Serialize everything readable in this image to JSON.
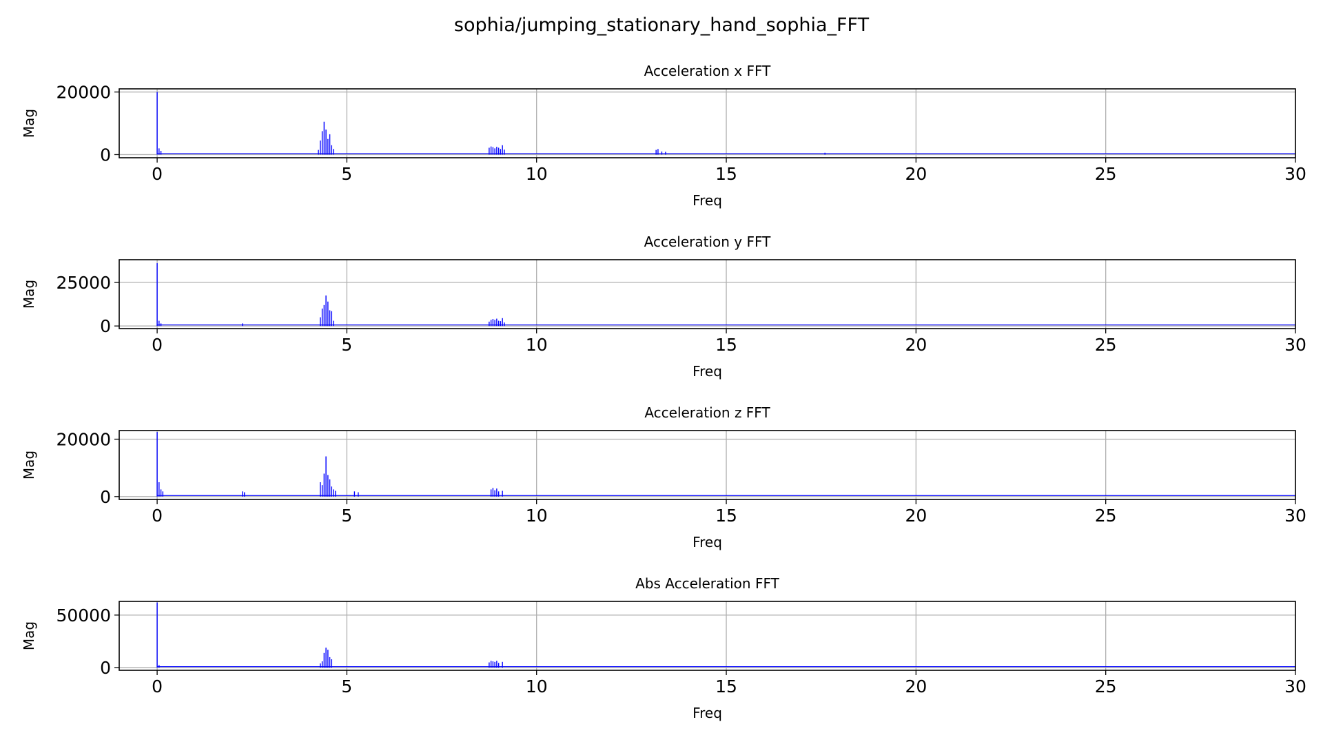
{
  "figure_title": "sophia/jumping_stationary_hand_sophia_FFT",
  "style": {
    "line_color": "#0000ff",
    "grid_color": "#b0b0b0",
    "axis_color": "#000000"
  },
  "chart_data": [
    {
      "type": "bar",
      "title": "Acceleration x FFT",
      "xlabel": "Freq",
      "ylabel": "Mag",
      "xlim": [
        -1,
        30
      ],
      "ylim": [
        -1000,
        21000
      ],
      "xticks": [
        0,
        5,
        10,
        15,
        20,
        25,
        30
      ],
      "yticks": [
        0,
        20000
      ],
      "grid": true,
      "x": [
        0.0,
        0.05,
        0.1,
        4.25,
        4.3,
        4.35,
        4.4,
        4.45,
        4.5,
        4.55,
        4.6,
        4.65,
        8.75,
        8.8,
        8.85,
        8.9,
        8.95,
        9.0,
        9.05,
        9.1,
        9.15,
        13.15,
        13.2,
        13.3,
        13.4,
        17.6
      ],
      "values": [
        20000,
        2000,
        1200,
        1500,
        4500,
        7500,
        10500,
        8000,
        5000,
        6500,
        3000,
        1800,
        2200,
        2600,
        2400,
        2000,
        2500,
        2200,
        1800,
        3000,
        1600,
        1500,
        1800,
        1000,
        900,
        600
      ]
    },
    {
      "type": "bar",
      "title": "Acceleration y FFT",
      "xlabel": "Freq",
      "ylabel": "Mag",
      "xlim": [
        -1,
        30
      ],
      "ylim": [
        -1500,
        38000
      ],
      "xticks": [
        0,
        5,
        10,
        15,
        20,
        25,
        30
      ],
      "yticks": [
        0,
        25000
      ],
      "grid": true,
      "x": [
        0.0,
        0.05,
        0.1,
        2.25,
        4.3,
        4.35,
        4.4,
        4.45,
        4.5,
        4.55,
        4.6,
        4.65,
        8.75,
        8.8,
        8.85,
        8.9,
        8.95,
        9.0,
        9.05,
        9.1,
        9.15
      ],
      "values": [
        36000,
        3000,
        1500,
        1500,
        5000,
        10000,
        12000,
        17500,
        14000,
        9000,
        8500,
        3000,
        2500,
        3500,
        4000,
        3500,
        4200,
        3000,
        2800,
        4500,
        2000
      ]
    },
    {
      "type": "bar",
      "title": "Acceleration z FFT",
      "xlabel": "Freq",
      "ylabel": "Mag",
      "xlim": [
        -1,
        30
      ],
      "ylim": [
        -1000,
        23000
      ],
      "xticks": [
        0,
        5,
        10,
        15,
        20,
        25,
        30
      ],
      "yticks": [
        0,
        20000
      ],
      "grid": true,
      "x": [
        0.0,
        0.05,
        0.1,
        0.15,
        2.25,
        2.3,
        4.3,
        4.35,
        4.4,
        4.45,
        4.5,
        4.55,
        4.6,
        4.65,
        4.7,
        5.2,
        5.3,
        8.8,
        8.85,
        8.9,
        8.95,
        9.0,
        9.1
      ],
      "values": [
        22500,
        5000,
        2500,
        1800,
        1800,
        1500,
        5000,
        4000,
        8000,
        14000,
        7500,
        6000,
        3500,
        2500,
        2000,
        1800,
        1500,
        2500,
        3000,
        2200,
        2800,
        1800,
        2000
      ]
    },
    {
      "type": "bar",
      "title": "Abs Acceleration FFT",
      "xlabel": "Freq",
      "ylabel": "Mag",
      "xlim": [
        -1,
        30
      ],
      "ylim": [
        -2500,
        63000
      ],
      "xticks": [
        0,
        5,
        10,
        15,
        20,
        25,
        30
      ],
      "yticks": [
        0,
        50000
      ],
      "grid": true,
      "x": [
        0.0,
        0.05,
        4.3,
        4.35,
        4.4,
        4.45,
        4.5,
        4.55,
        4.6,
        8.75,
        8.8,
        8.85,
        8.9,
        8.95,
        9.0,
        9.1
      ],
      "values": [
        62000,
        2500,
        4000,
        6000,
        14000,
        19000,
        17000,
        10000,
        8000,
        5000,
        6500,
        6000,
        5500,
        6500,
        4500,
        5500
      ]
    }
  ]
}
